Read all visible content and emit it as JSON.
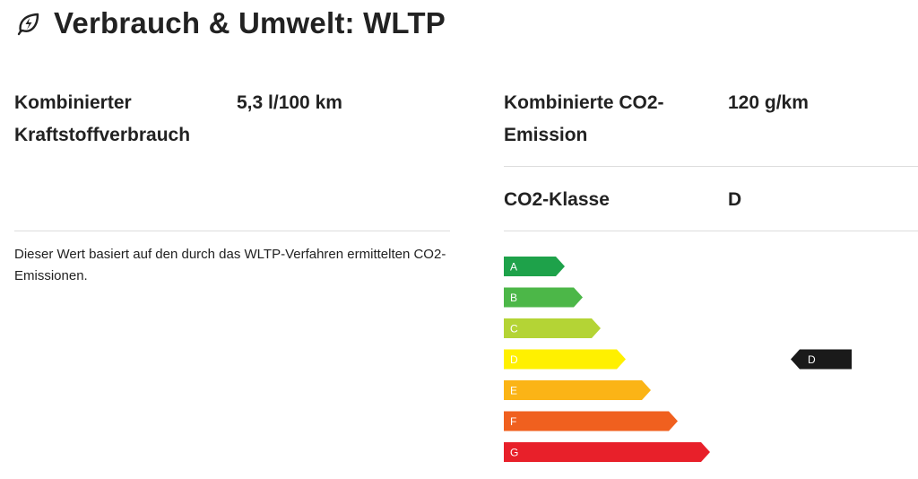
{
  "header": {
    "title": "Verbrauch & Umwelt: WLTP",
    "icon": "leaf-bolt-icon"
  },
  "specs": {
    "fuel": {
      "label_line1": "Kombinierter",
      "label_line2": "Kraftstoffverbrauch",
      "value": "5,3 l/100 km"
    },
    "co2": {
      "label_line1": "Kombinierte CO2-",
      "label_line2": "Emission",
      "value": "120 g/km"
    },
    "co2_class": {
      "label": "CO2-Klasse",
      "value": "D"
    }
  },
  "note": {
    "text": "Dieser Wert basiert auf den durch das WLTP-Verfahren ermittelten CO2-Emissionen."
  },
  "energy_label": {
    "classes": [
      {
        "letter": "A",
        "color": "#1ea24a"
      },
      {
        "letter": "B",
        "color": "#4cb748"
      },
      {
        "letter": "C",
        "color": "#b4d435"
      },
      {
        "letter": "D",
        "color": "#fff000"
      },
      {
        "letter": "E",
        "color": "#fbb416"
      },
      {
        "letter": "F",
        "color": "#f0601f"
      },
      {
        "letter": "G",
        "color": "#e8202a"
      }
    ],
    "selected": "D",
    "marker_color": "#1a1a1a"
  }
}
